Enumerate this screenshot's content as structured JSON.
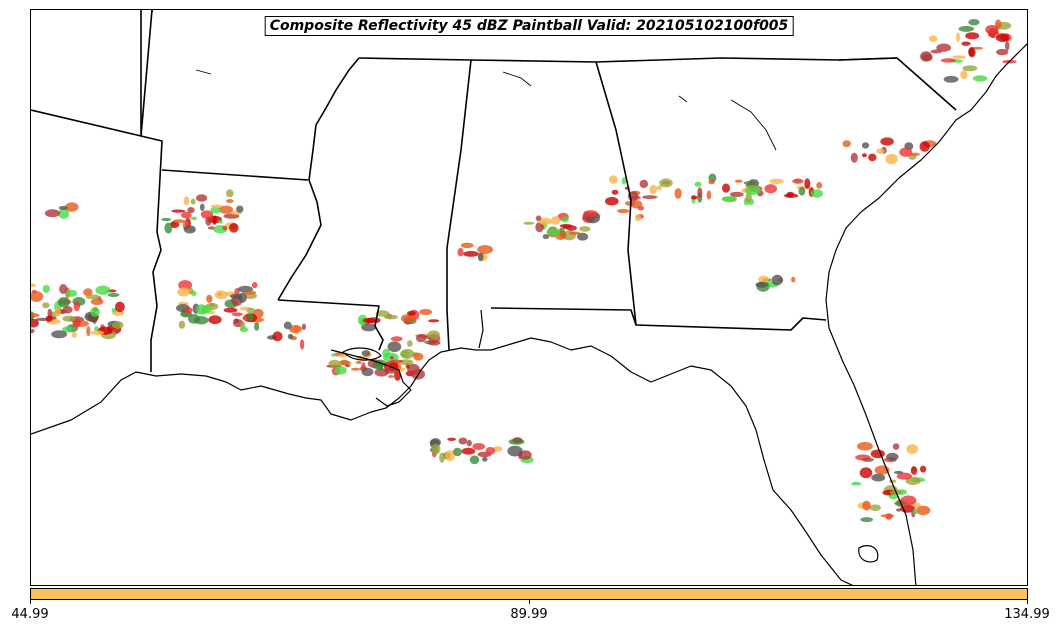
{
  "title": "Composite Reflectivity 45 dBZ Paintball Valid: 202105102100f005",
  "colorbar": {
    "color": "#ffbe5c",
    "ticks": [
      "44.99",
      "89.99",
      "134.99"
    ]
  },
  "member_colors": [
    "#ee3333",
    "#e85a1a",
    "#ffb347",
    "#9aa63a",
    "#3a8a3a",
    "#44dd44",
    "#b03838",
    "#555555",
    "#cc0000"
  ],
  "chart_data": {
    "type": "map",
    "region": "Southeastern United States",
    "field": "Composite Reflectivity 45 dBZ paintball",
    "colorbar_range": [
      44.99,
      134.99
    ],
    "colorbar_ticks": [
      44.99,
      89.99,
      134.99
    ]
  }
}
